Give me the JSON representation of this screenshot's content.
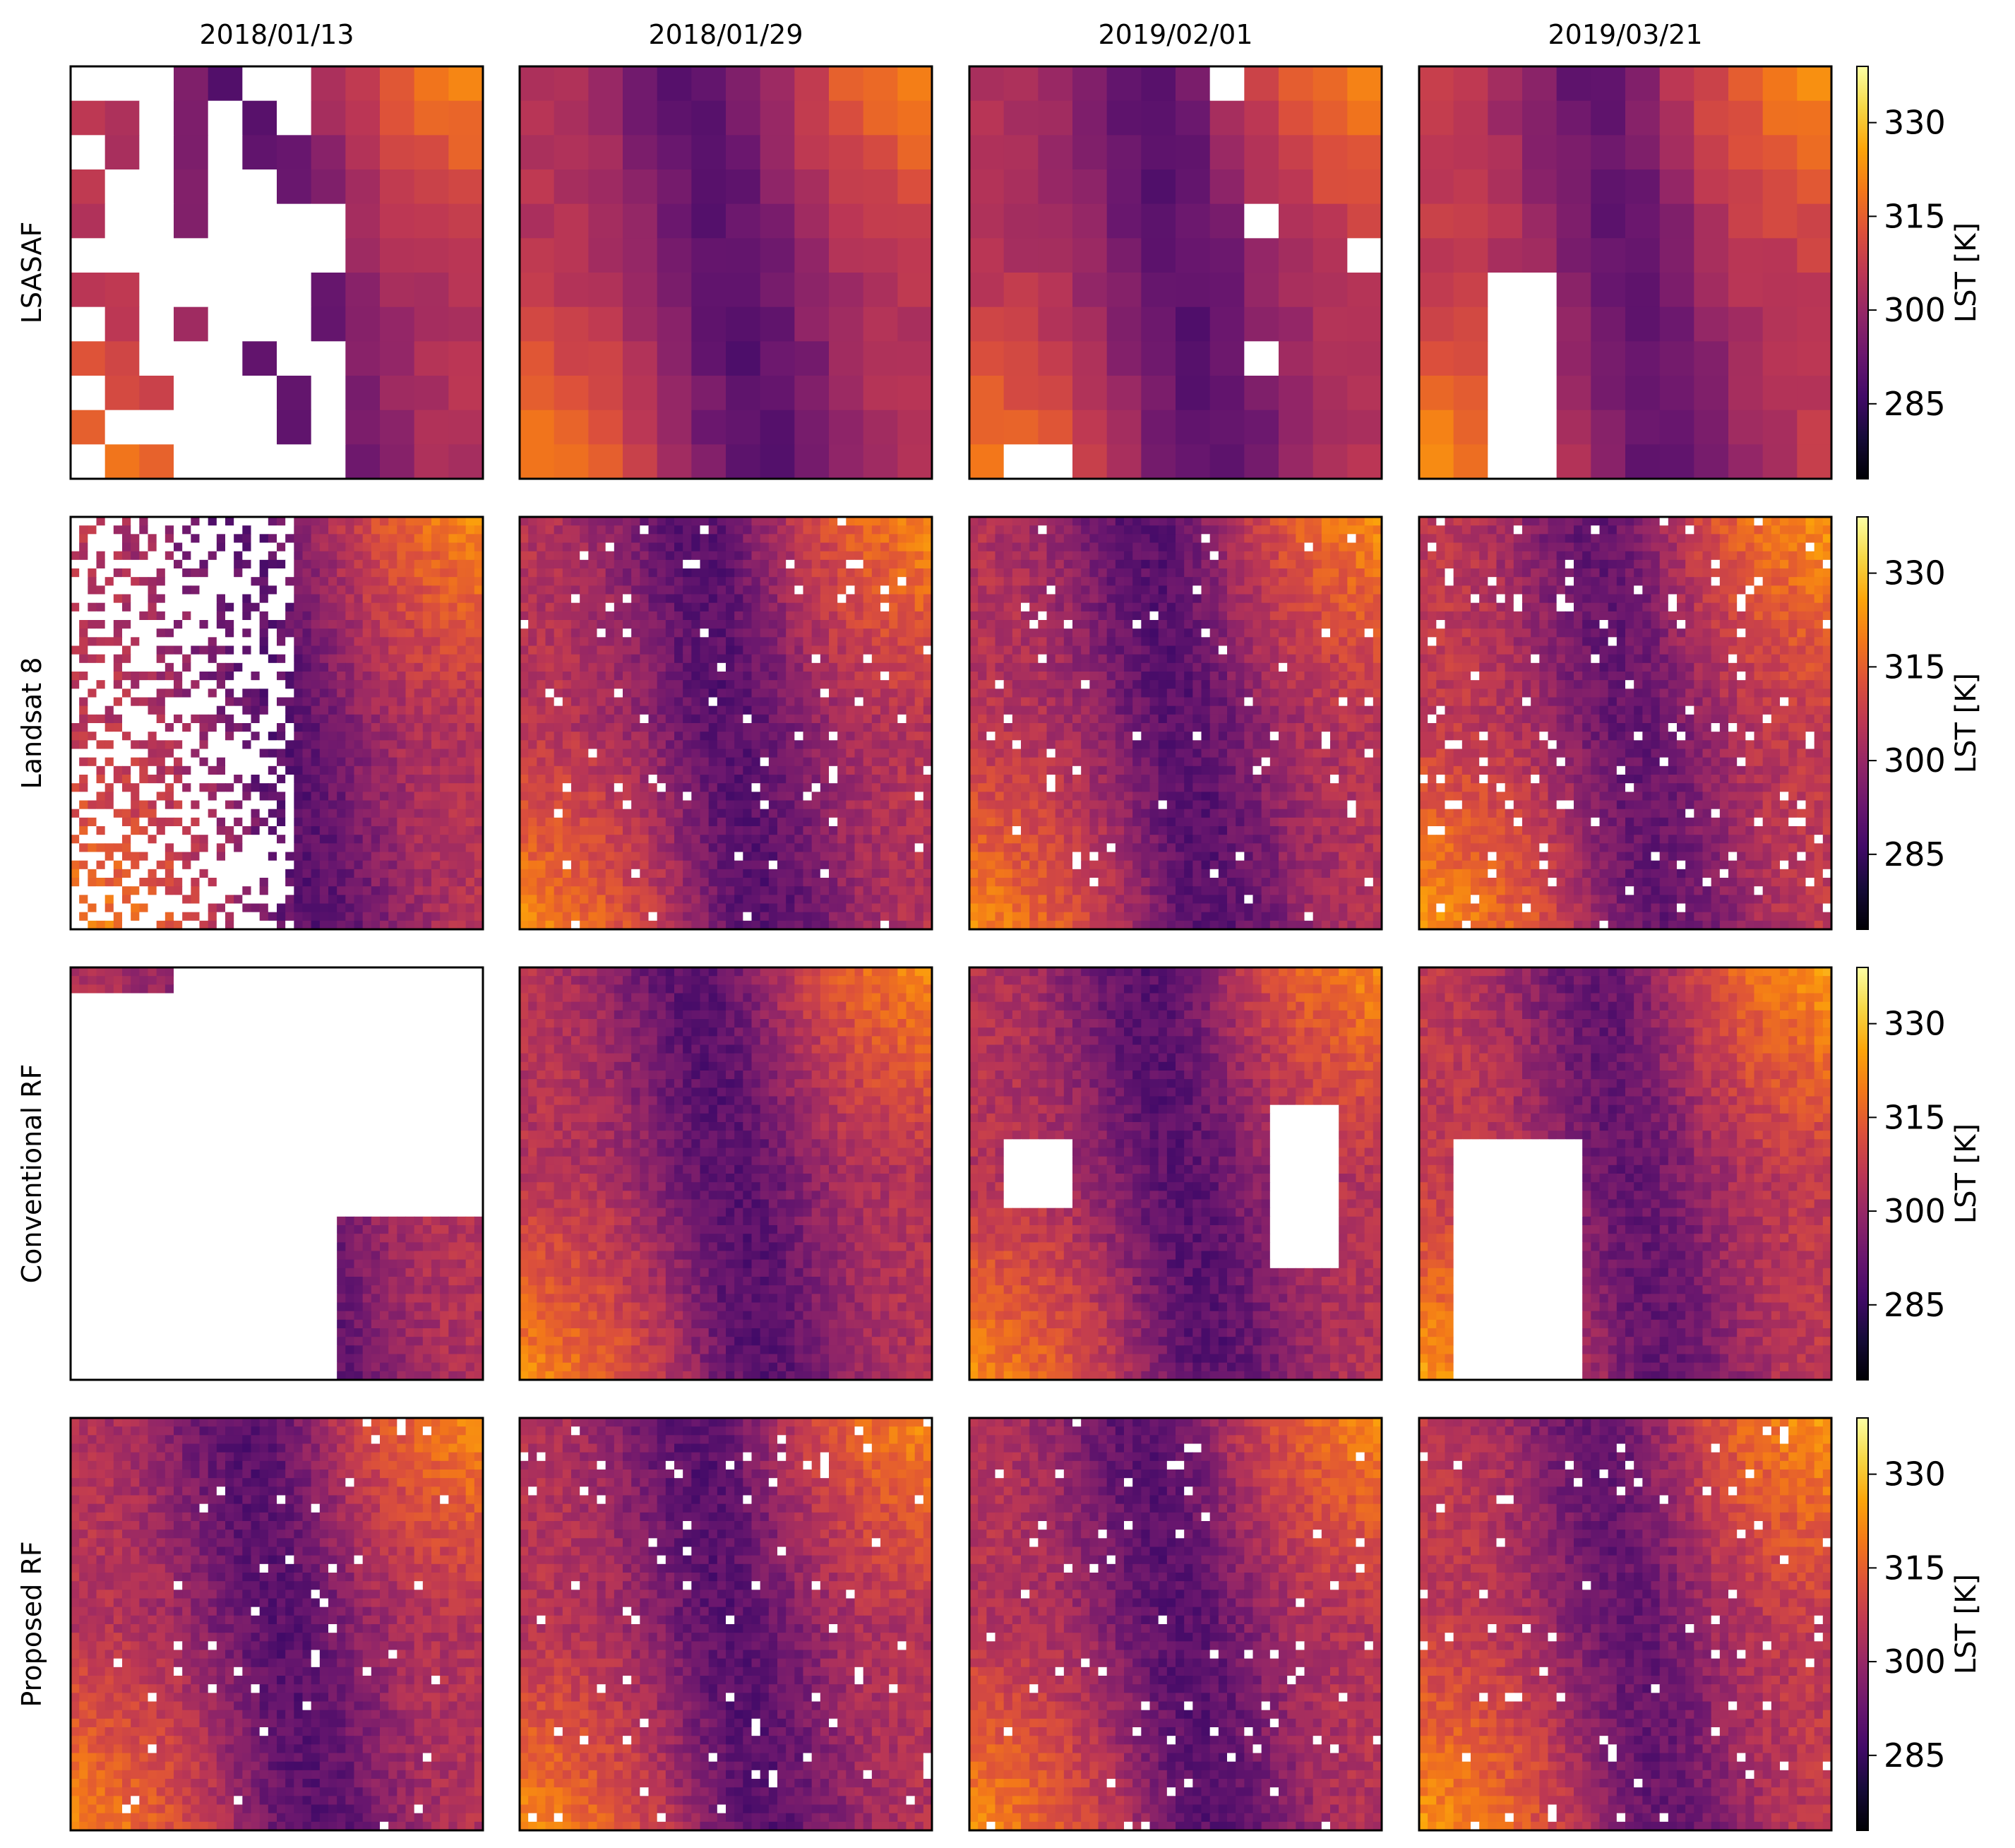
{
  "figure": {
    "columns": [
      {
        "date": "2018/01/13"
      },
      {
        "date": "2018/01/29"
      },
      {
        "date": "2019/02/01"
      },
      {
        "date": "2019/03/21"
      }
    ],
    "rows": [
      {
        "label": "LSASAF"
      },
      {
        "label": "Landsat 8"
      },
      {
        "label": "Conventional RF"
      },
      {
        "label": "Proposed RF"
      }
    ],
    "colorbar": {
      "label": "LST [K]",
      "ticks": [
        "330",
        "315",
        "300",
        "285"
      ],
      "tick_values": [
        330,
        315,
        300,
        285
      ],
      "vmin": 273,
      "vmax": 339,
      "colormap": "inferno"
    },
    "colors": {
      "nodata": "#ffffff",
      "frame": "#000000"
    }
  }
}
